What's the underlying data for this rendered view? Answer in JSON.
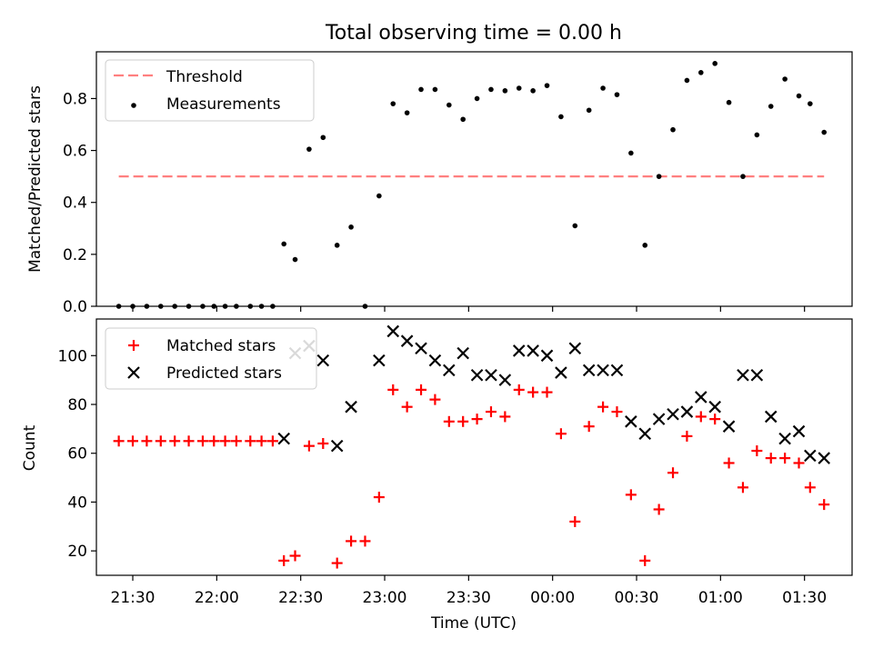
{
  "figure": {
    "title": "Total observing time = 0.00 h",
    "xlabel": "Time (UTC)",
    "xticks": [
      "21:30",
      "22:00",
      "22:30",
      "23:00",
      "23:30",
      "00:00",
      "00:30",
      "01:00",
      "01:30"
    ]
  },
  "colors": {
    "threshold": "#ff7f7f",
    "measurements": "#000000",
    "matched": "#ff0000",
    "predicted": "#000000"
  },
  "chart_data": [
    {
      "type": "scatter",
      "ylabel": "Matched/Predicted stars",
      "ylim": [
        0,
        0.98
      ],
      "yticks": [
        "0.0",
        "0.2",
        "0.4",
        "0.6",
        "0.8"
      ],
      "legend": "top-left",
      "threshold": {
        "name": "Threshold",
        "value": 0.5,
        "x_range": [
          "21:25",
          "01:37"
        ]
      },
      "series": [
        {
          "name": "Measurements",
          "points": [
            [
              "21:25",
              0.0
            ],
            [
              "21:30",
              0.0
            ],
            [
              "21:35",
              0.0
            ],
            [
              "21:40",
              0.0
            ],
            [
              "21:45",
              0.0
            ],
            [
              "21:50",
              0.0
            ],
            [
              "21:55",
              0.0
            ],
            [
              "21:59",
              0.0
            ],
            [
              "22:03",
              0.0
            ],
            [
              "22:07",
              0.0
            ],
            [
              "22:12",
              0.0
            ],
            [
              "22:16",
              0.0
            ],
            [
              "22:20",
              0.0
            ],
            [
              "22:24",
              0.24
            ],
            [
              "22:28",
              0.18
            ],
            [
              "22:33",
              0.605
            ],
            [
              "22:38",
              0.65
            ],
            [
              "22:43",
              0.235
            ],
            [
              "22:48",
              0.305
            ],
            [
              "22:53",
              0.0
            ],
            [
              "22:58",
              0.425
            ],
            [
              "23:03",
              0.78
            ],
            [
              "23:08",
              0.745
            ],
            [
              "23:13",
              0.835
            ],
            [
              "23:18",
              0.835
            ],
            [
              "23:23",
              0.775
            ],
            [
              "23:28",
              0.72
            ],
            [
              "23:33",
              0.8
            ],
            [
              "23:38",
              0.835
            ],
            [
              "23:43",
              0.83
            ],
            [
              "23:48",
              0.84
            ],
            [
              "23:53",
              0.83
            ],
            [
              "23:58",
              0.85
            ],
            [
              "00:03",
              0.73
            ],
            [
              "00:08",
              0.31
            ],
            [
              "00:13",
              0.755
            ],
            [
              "00:18",
              0.84
            ],
            [
              "00:23",
              0.815
            ],
            [
              "00:28",
              0.59
            ],
            [
              "00:33",
              0.235
            ],
            [
              "00:38",
              0.5
            ],
            [
              "00:43",
              0.68
            ],
            [
              "00:48",
              0.87
            ],
            [
              "00:53",
              0.9
            ],
            [
              "00:58",
              0.935
            ],
            [
              "01:03",
              0.785
            ],
            [
              "01:08",
              0.5
            ],
            [
              "01:13",
              0.66
            ],
            [
              "01:18",
              0.77
            ],
            [
              "01:23",
              0.875
            ],
            [
              "01:28",
              0.81
            ],
            [
              "01:32",
              0.78
            ],
            [
              "01:37",
              0.67
            ]
          ]
        }
      ]
    },
    {
      "type": "scatter",
      "ylabel": "Count",
      "ylim": [
        10,
        115
      ],
      "yticks": [
        "20",
        "40",
        "60",
        "80",
        "100"
      ],
      "legend": "top-left",
      "series": [
        {
          "name": "Matched stars",
          "marker": "plus",
          "points": [
            [
              "21:25",
              65
            ],
            [
              "21:30",
              65
            ],
            [
              "21:35",
              65
            ],
            [
              "21:40",
              65
            ],
            [
              "21:45",
              65
            ],
            [
              "21:50",
              65
            ],
            [
              "21:55",
              65
            ],
            [
              "21:59",
              65
            ],
            [
              "22:03",
              65
            ],
            [
              "22:07",
              65
            ],
            [
              "22:12",
              65
            ],
            [
              "22:16",
              65
            ],
            [
              "22:20",
              65
            ],
            [
              "22:24",
              16
            ],
            [
              "22:28",
              18
            ],
            [
              "22:33",
              63
            ],
            [
              "22:38",
              64
            ],
            [
              "22:43",
              15
            ],
            [
              "22:48",
              24
            ],
            [
              "22:53",
              24
            ],
            [
              "22:58",
              42
            ],
            [
              "23:03",
              86
            ],
            [
              "23:08",
              79
            ],
            [
              "23:13",
              86
            ],
            [
              "23:18",
              82
            ],
            [
              "23:23",
              73
            ],
            [
              "23:28",
              73
            ],
            [
              "23:33",
              74
            ],
            [
              "23:38",
              77
            ],
            [
              "23:43",
              75
            ],
            [
              "23:48",
              86
            ],
            [
              "23:53",
              85
            ],
            [
              "23:58",
              85
            ],
            [
              "00:03",
              68
            ],
            [
              "00:08",
              32
            ],
            [
              "00:13",
              71
            ],
            [
              "00:18",
              79
            ],
            [
              "00:23",
              77
            ],
            [
              "00:28",
              43
            ],
            [
              "00:33",
              16
            ],
            [
              "00:38",
              37
            ],
            [
              "00:43",
              52
            ],
            [
              "00:48",
              67
            ],
            [
              "00:53",
              75
            ],
            [
              "00:58",
              74
            ],
            [
              "01:03",
              56
            ],
            [
              "01:08",
              46
            ],
            [
              "01:13",
              61
            ],
            [
              "01:18",
              58
            ],
            [
              "01:23",
              58
            ],
            [
              "01:28",
              56
            ],
            [
              "01:32",
              46
            ],
            [
              "01:37",
              39
            ]
          ]
        },
        {
          "name": "Predicted stars",
          "marker": "x",
          "points": [
            [
              "22:24",
              66
            ],
            [
              "22:28",
              101
            ],
            [
              "22:33",
              104
            ],
            [
              "22:38",
              98
            ],
            [
              "22:43",
              63
            ],
            [
              "22:48",
              79
            ],
            [
              "22:58",
              98
            ],
            [
              "23:03",
              110
            ],
            [
              "23:08",
              106
            ],
            [
              "23:13",
              103
            ],
            [
              "23:18",
              98
            ],
            [
              "23:23",
              94
            ],
            [
              "23:28",
              101
            ],
            [
              "23:33",
              92
            ],
            [
              "23:38",
              92
            ],
            [
              "23:43",
              90
            ],
            [
              "23:48",
              102
            ],
            [
              "23:53",
              102
            ],
            [
              "23:58",
              100
            ],
            [
              "00:03",
              93
            ],
            [
              "00:08",
              103
            ],
            [
              "00:13",
              94
            ],
            [
              "00:18",
              94
            ],
            [
              "00:23",
              94
            ],
            [
              "00:28",
              73
            ],
            [
              "00:33",
              68
            ],
            [
              "00:38",
              74
            ],
            [
              "00:43",
              76
            ],
            [
              "00:48",
              77
            ],
            [
              "00:53",
              83
            ],
            [
              "00:58",
              79
            ],
            [
              "01:03",
              71
            ],
            [
              "01:08",
              92
            ],
            [
              "01:13",
              92
            ],
            [
              "01:18",
              75
            ],
            [
              "01:23",
              66
            ],
            [
              "01:28",
              69
            ],
            [
              "01:32",
              59
            ],
            [
              "01:37",
              58
            ]
          ]
        }
      ]
    }
  ]
}
